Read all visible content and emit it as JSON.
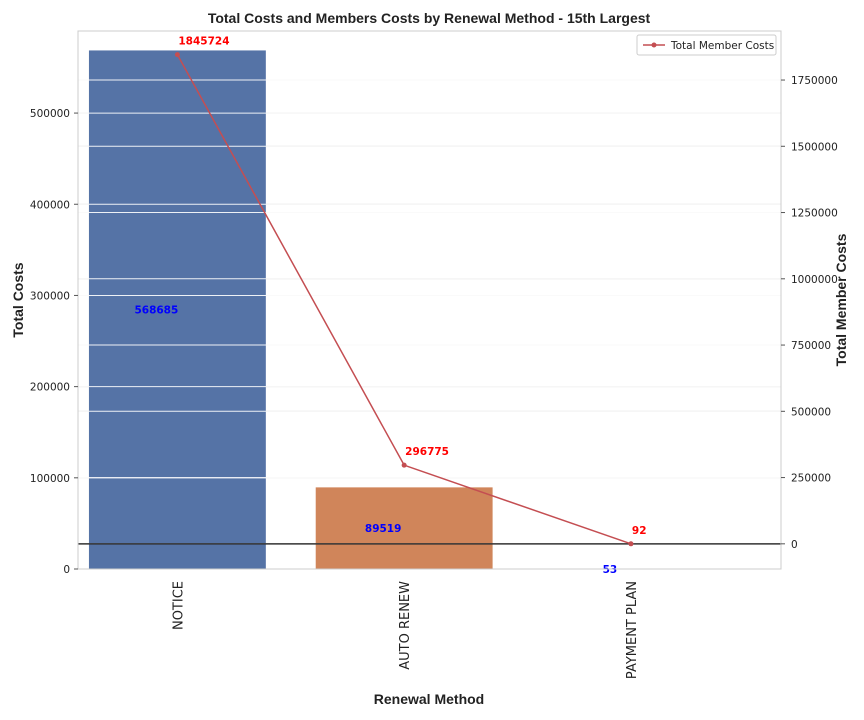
{
  "chart_data": {
    "type": "bar",
    "title": "Total Costs and Members Costs by Renewal Method - 15th Largest",
    "xlabel": "Renewal Method",
    "ylabel": "Total Costs",
    "y2label": "Total Member Costs",
    "categories": [
      "NOTICE",
      "AUTO RENEW",
      "PAYMENT PLAN"
    ],
    "bar_series": {
      "values": [
        568685,
        89519,
        53
      ],
      "colors": [
        "#5573a6",
        "#d0855a",
        "#5d9e62"
      ],
      "label_color": "#0000ff"
    },
    "line_series": {
      "name": "Total Member Costs",
      "values": [
        1845724,
        296775,
        92
      ],
      "color": "#c44e52",
      "label_color": "#ff0000"
    },
    "ylim": [
      0,
      590000
    ],
    "y_ticks": [
      0,
      100000,
      200000,
      300000,
      400000,
      500000
    ],
    "y2lim": [
      -95000,
      1935000
    ],
    "y2_ticks": [
      0,
      250000,
      500000,
      750000,
      1000000,
      1250000,
      1500000,
      1750000
    ],
    "y_tick_labels": [
      "0",
      "100000",
      "200000",
      "300000",
      "400000",
      "500000"
    ],
    "y2_tick_labels": [
      "0",
      "250000",
      "500000",
      "750000",
      "1000000",
      "1250000",
      "1500000",
      "1750000"
    ],
    "bar_value_labels": [
      "568685",
      "89519",
      "53"
    ],
    "line_value_labels": [
      "1845724",
      "296775",
      "92"
    ],
    "grid": true,
    "legend_position": "top-right"
  }
}
